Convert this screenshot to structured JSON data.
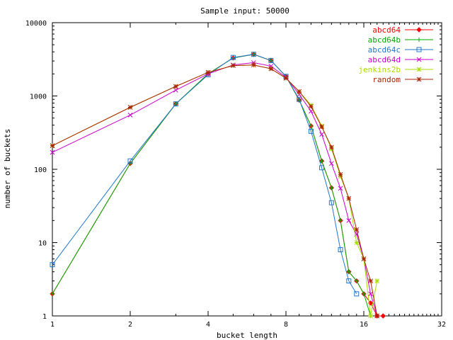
{
  "chart_data": {
    "type": "line",
    "title": "Sample input: 50000",
    "xlabel": "bucket length",
    "ylabel": "number of buckets",
    "xscale": "log2",
    "yscale": "log10",
    "xlim": [
      1,
      32
    ],
    "ylim": [
      1,
      10000
    ],
    "xticks": [
      {
        "value": 1,
        "label": "1"
      },
      {
        "value": 2,
        "label": "2"
      },
      {
        "value": 4,
        "label": "4"
      },
      {
        "value": 8,
        "label": "8"
      },
      {
        "value": 16,
        "label": "16"
      },
      {
        "value": 32,
        "label": "32"
      }
    ],
    "yticks": [
      {
        "value": 1,
        "label": "1"
      },
      {
        "value": 10,
        "label": "10"
      },
      {
        "value": 100,
        "label": "100"
      },
      {
        "value": 1000,
        "label": "1000"
      },
      {
        "value": 10000,
        "label": "10000"
      }
    ],
    "grid": false,
    "legend": "top-right",
    "series": [
      {
        "name": "abcd64",
        "color": "#ff0000",
        "marker": "diamond",
        "x": [
          1,
          2,
          3,
          4,
          5,
          6,
          7,
          8,
          9,
          10,
          11,
          12,
          13,
          14,
          15,
          16,
          17,
          18,
          19
        ],
        "y": [
          2,
          120,
          780,
          2000,
          3300,
          3700,
          3050,
          1850,
          880,
          390,
          130,
          56,
          20,
          4,
          3,
          2,
          1.5,
          1,
          1
        ]
      },
      {
        "name": "abcd64b",
        "color": "#00aa00",
        "marker": "plus",
        "x": [
          1,
          2,
          3,
          4,
          5,
          6,
          7,
          8,
          9,
          10,
          11,
          12,
          13,
          14,
          15,
          16,
          17
        ],
        "y": [
          2,
          120,
          780,
          2000,
          3300,
          3700,
          3050,
          1850,
          880,
          390,
          130,
          56,
          20,
          4,
          3,
          2,
          1
        ]
      },
      {
        "name": "abcd64c",
        "color": "#1f77cc",
        "marker": "square",
        "x": [
          1,
          2,
          3,
          4,
          5,
          6,
          7,
          8,
          9,
          10,
          11,
          12,
          13,
          14,
          15
        ],
        "y": [
          5,
          130,
          780,
          1950,
          3350,
          3700,
          3050,
          1850,
          900,
          330,
          105,
          35,
          8,
          3,
          2
        ]
      },
      {
        "name": "abcd64d",
        "color": "#cc00cc",
        "marker": "x",
        "x": [
          1,
          2,
          3,
          4,
          5,
          6,
          7,
          8,
          9,
          10,
          11,
          12,
          13,
          14,
          15,
          16,
          17,
          18
        ],
        "y": [
          170,
          550,
          1200,
          2000,
          2650,
          2850,
          2550,
          1800,
          1050,
          620,
          300,
          120,
          55,
          20,
          13,
          6,
          2,
          1
        ]
      },
      {
        "name": "jenkins2b",
        "color": "#aadd00",
        "marker": "asterisk",
        "x": [
          1,
          2,
          3,
          4,
          5,
          6,
          7,
          8,
          9,
          10,
          11,
          12,
          13,
          14,
          15,
          16,
          17,
          18
        ],
        "y": [
          210,
          700,
          1350,
          2100,
          2600,
          2650,
          2350,
          1750,
          1150,
          750,
          390,
          190,
          80,
          40,
          10,
          6,
          1,
          3
        ]
      },
      {
        "name": "random",
        "color": "#aa2200",
        "marker": "asterisk",
        "x": [
          1,
          2,
          3,
          4,
          5,
          6,
          7,
          8,
          9,
          10,
          11,
          12,
          13,
          14,
          15,
          16,
          17,
          18
        ],
        "y": [
          210,
          700,
          1350,
          2100,
          2600,
          2650,
          2350,
          1750,
          1150,
          720,
          380,
          200,
          85,
          40,
          15,
          6,
          3,
          1
        ]
      }
    ]
  }
}
